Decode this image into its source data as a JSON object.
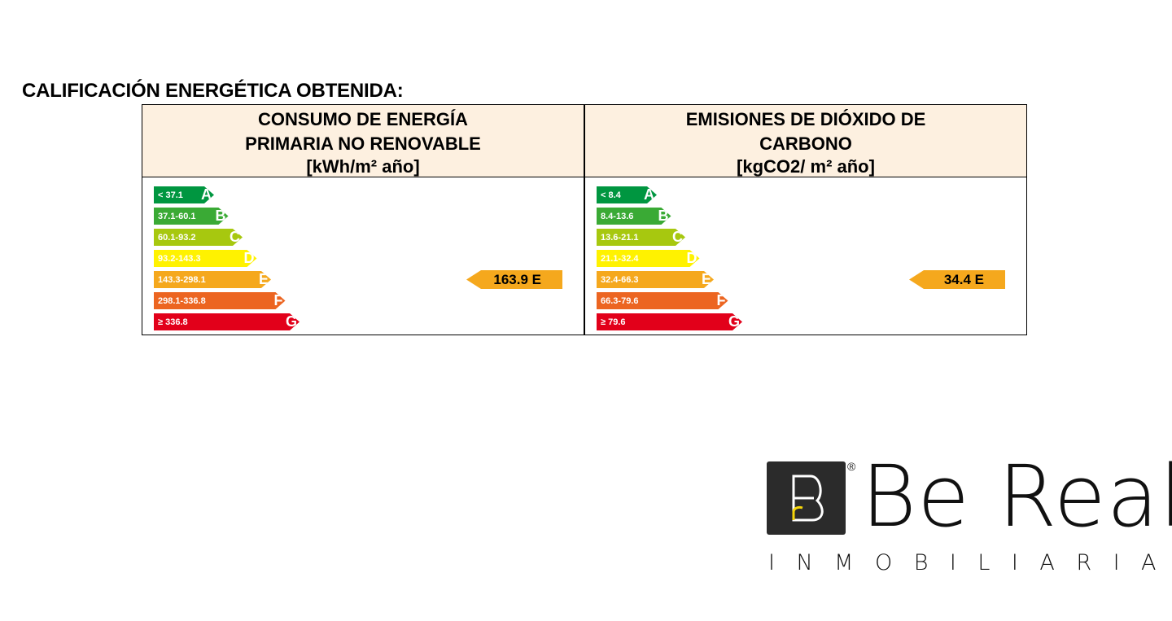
{
  "title": "CALIFICACIÓN ENERGÉTICA OBTENIDA:",
  "panels": [
    {
      "heading_line1": "CONSUMO DE ENERGÍA",
      "heading_line2": "PRIMARIA NO RENOVABLE",
      "unit": "[kWh/m² año]",
      "scale": [
        {
          "range": "< 37.1",
          "letter": "A",
          "color": "#009640"
        },
        {
          "range": "37.1-60.1",
          "letter": "B",
          "color": "#3aaa35"
        },
        {
          "range": "60.1-93.2",
          "letter": "C",
          "color": "#a7c80f"
        },
        {
          "range": "93.2-143.3",
          "letter": "D",
          "color": "#fff200"
        },
        {
          "range": "143.3-298.1",
          "letter": "E",
          "color": "#f5a81d"
        },
        {
          "range": "298.1-336.8",
          "letter": "F",
          "color": "#ec6521"
        },
        {
          "range": "≥ 336.8",
          "letter": "G",
          "color": "#e2001a"
        }
      ],
      "result": "163.9 E",
      "result_color": "#f5a81d"
    },
    {
      "heading_line1": "EMISIONES DE DIÓXIDO DE",
      "heading_line2": "CARBONO",
      "unit": "[kgCO2/ m² año]",
      "scale": [
        {
          "range": "< 8.4",
          "letter": "A",
          "color": "#009640"
        },
        {
          "range": "8.4-13.6",
          "letter": "B",
          "color": "#3aaa35"
        },
        {
          "range": "13.6-21.1",
          "letter": "C",
          "color": "#a7c80f"
        },
        {
          "range": "21.1-32.4",
          "letter": "D",
          "color": "#fff200"
        },
        {
          "range": "32.4-66.3",
          "letter": "E",
          "color": "#f5a81d"
        },
        {
          "range": "66.3-79.6",
          "letter": "F",
          "color": "#ec6521"
        },
        {
          "range": "≥ 79.6",
          "letter": "G",
          "color": "#e2001a"
        }
      ],
      "result": "34.4 E",
      "result_color": "#f5a81d"
    }
  ],
  "logo": {
    "mark_letter": "B",
    "registered": "®",
    "name": "Be Real",
    "subtitle": "INMOBILIARIAS"
  }
}
